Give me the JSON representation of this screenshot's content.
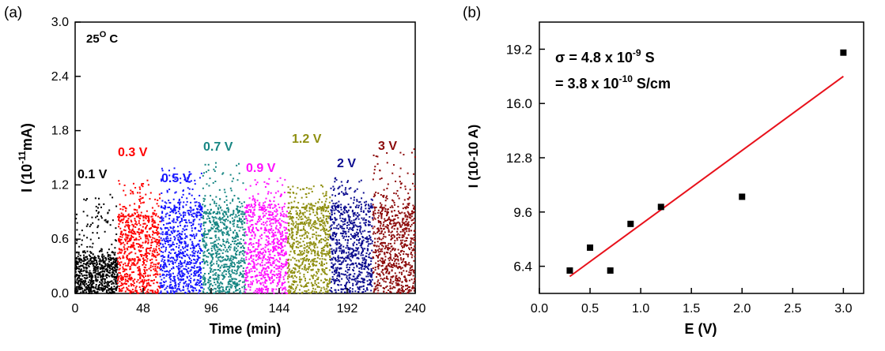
{
  "panels": {
    "a": {
      "label": "(a)"
    },
    "b": {
      "label": "(b)"
    }
  },
  "colors": {
    "axis": "#000000",
    "fit_line": "#e8111b",
    "segments": [
      "#000000",
      "#ff0000",
      "#1515ff",
      "#178683",
      "#ff10ff",
      "#8f8f10",
      "#0c0c8f",
      "#8c0a0a"
    ]
  },
  "chart_data": [
    {
      "panel": "a",
      "type": "scatter",
      "xlabel": "Time (min)",
      "ylabel": {
        "base": "I (10",
        "exp": "-11",
        "unit": "mA)"
      },
      "xlim": [
        0,
        240
      ],
      "ylim": [
        0,
        3.0
      ],
      "xticks": [
        "0",
        "48",
        "96",
        "144",
        "192",
        "240"
      ],
      "yticks": [
        "0.0",
        "0.6",
        "1.2",
        "1.8",
        "2.4",
        "3.0"
      ],
      "annotation": {
        "base": "25",
        "sup": "O",
        "tail": " C"
      },
      "series": [
        {
          "name": "0.1 V",
          "x_range": [
            0,
            30
          ],
          "y_band_max": 0.45,
          "y_peak": 1.1
        },
        {
          "name": "0.3 V",
          "x_range": [
            30,
            60
          ],
          "y_band_max": 0.85,
          "y_peak": 1.25
        },
        {
          "name": "0.5 V",
          "x_range": [
            60,
            90
          ],
          "y_band_max": 0.95,
          "y_peak": 1.4
        },
        {
          "name": "0.7 V",
          "x_range": [
            90,
            120
          ],
          "y_band_max": 0.9,
          "y_peak": 1.45
        },
        {
          "name": "0.9 V",
          "x_range": [
            120,
            150
          ],
          "y_band_max": 0.95,
          "y_peak": 1.3
        },
        {
          "name": "1.2 V",
          "x_range": [
            150,
            180
          ],
          "y_band_max": 0.95,
          "y_peak": 1.2
        },
        {
          "name": "2 V",
          "x_range": [
            180,
            210
          ],
          "y_band_max": 0.95,
          "y_peak": 1.3
        },
        {
          "name": "3 V",
          "x_range": [
            210,
            240
          ],
          "y_band_max": 0.95,
          "y_peak": 1.6
        }
      ]
    },
    {
      "panel": "b",
      "type": "scatter",
      "xlabel": "E (V)",
      "ylabel": "I (10-10 A)",
      "xlim": [
        0.0,
        3.2
      ],
      "ylim": [
        4.8,
        20.8
      ],
      "xticks": [
        "0.0",
        "0.5",
        "1.0",
        "1.5",
        "2.0",
        "2.5",
        "3.0"
      ],
      "yticks": [
        "6.4",
        "9.6",
        "12.8",
        "16.0",
        "19.2"
      ],
      "points": [
        {
          "x": 0.3,
          "y": 6.15
        },
        {
          "x": 0.5,
          "y": 7.5
        },
        {
          "x": 0.7,
          "y": 6.15
        },
        {
          "x": 0.9,
          "y": 8.9
        },
        {
          "x": 1.2,
          "y": 9.9
        },
        {
          "x": 2.0,
          "y": 10.5
        },
        {
          "x": 3.0,
          "y": 19.0
        }
      ],
      "fit_line": {
        "x": [
          0.3,
          3.0
        ],
        "y": [
          5.8,
          17.6
        ]
      },
      "annotation_line1": {
        "base": "σ = 4.8 x 10",
        "exp": "-9",
        "unit": " S"
      },
      "annotation_line2": {
        "base": "=  3.8 x 10",
        "exp": "-10",
        "unit": " S/cm"
      }
    }
  ]
}
